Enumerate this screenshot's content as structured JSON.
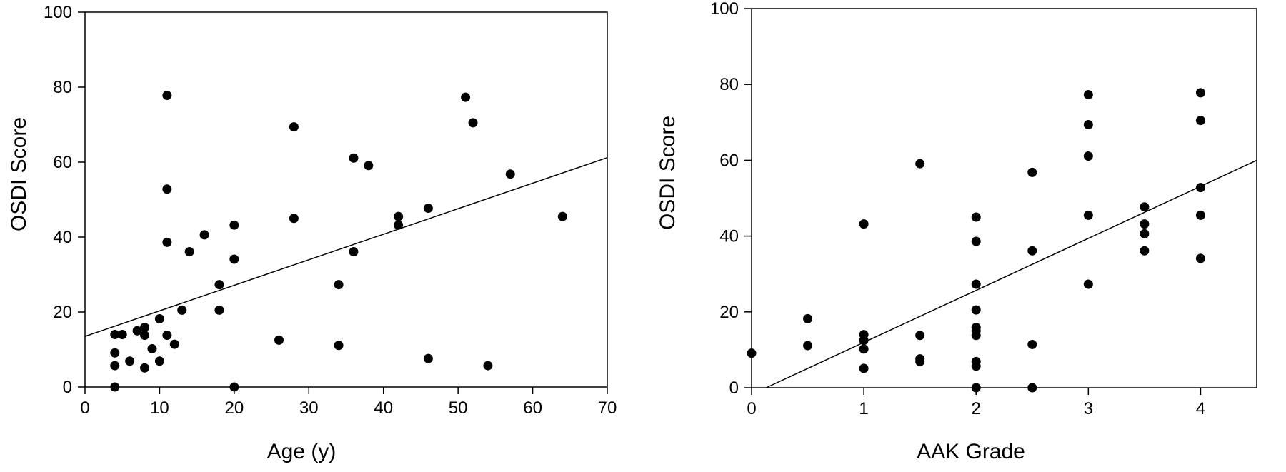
{
  "chart_data": [
    {
      "type": "scatter",
      "title": "",
      "xlabel": "Age (y)",
      "ylabel": "OSDI Score",
      "xlim": [
        0,
        70
      ],
      "ylim": [
        0,
        100
      ],
      "xticks": [
        0,
        10,
        20,
        30,
        40,
        50,
        60,
        70
      ],
      "yticks": [
        0,
        20,
        40,
        60,
        80,
        100
      ],
      "grid": false,
      "legend": "none",
      "marker_color": "#000000",
      "points": [
        {
          "x": 4,
          "y": 0
        },
        {
          "x": 4,
          "y": 5.7
        },
        {
          "x": 4,
          "y": 9.1
        },
        {
          "x": 4,
          "y": 14
        },
        {
          "x": 5,
          "y": 14
        },
        {
          "x": 6,
          "y": 6.9
        },
        {
          "x": 7,
          "y": 15
        },
        {
          "x": 8,
          "y": 5.1
        },
        {
          "x": 8,
          "y": 13.8
        },
        {
          "x": 8,
          "y": 15.9
        },
        {
          "x": 9,
          "y": 10.2
        },
        {
          "x": 10,
          "y": 6.9
        },
        {
          "x": 10,
          "y": 18.2
        },
        {
          "x": 11,
          "y": 13.8
        },
        {
          "x": 11,
          "y": 38.6
        },
        {
          "x": 11,
          "y": 52.8
        },
        {
          "x": 11,
          "y": 77.8
        },
        {
          "x": 12,
          "y": 11.4
        },
        {
          "x": 13,
          "y": 20.5
        },
        {
          "x": 14,
          "y": 36.1
        },
        {
          "x": 16,
          "y": 40.6
        },
        {
          "x": 18,
          "y": 20.5
        },
        {
          "x": 18,
          "y": 27.3
        },
        {
          "x": 20,
          "y": 0
        },
        {
          "x": 20,
          "y": 34.1
        },
        {
          "x": 20,
          "y": 43.2
        },
        {
          "x": 26,
          "y": 12.5
        },
        {
          "x": 28,
          "y": 45
        },
        {
          "x": 28,
          "y": 69.4
        },
        {
          "x": 34,
          "y": 11.1
        },
        {
          "x": 34,
          "y": 27.3
        },
        {
          "x": 36,
          "y": 36.1
        },
        {
          "x": 36,
          "y": 61.1
        },
        {
          "x": 38,
          "y": 59.1
        },
        {
          "x": 42,
          "y": 43.2
        },
        {
          "x": 42,
          "y": 45.5
        },
        {
          "x": 46,
          "y": 7.6
        },
        {
          "x": 46,
          "y": 47.7
        },
        {
          "x": 51,
          "y": 77.3
        },
        {
          "x": 52,
          "y": 70.5
        },
        {
          "x": 54,
          "y": 5.7
        },
        {
          "x": 57,
          "y": 56.8
        },
        {
          "x": 64,
          "y": 45.5
        }
      ],
      "trendline": {
        "x": [
          0,
          70
        ],
        "y": [
          13.5,
          61.2
        ]
      }
    },
    {
      "type": "scatter",
      "title": "",
      "xlabel": "AAK Grade",
      "ylabel": "OSDI Score",
      "xlim": [
        0,
        4.5
      ],
      "ylim": [
        0,
        100
      ],
      "xticks": [
        0,
        1,
        2,
        3,
        4
      ],
      "yticks": [
        0,
        20,
        40,
        60,
        80,
        100
      ],
      "grid": false,
      "legend": "none",
      "marker_color": "#000000",
      "points": [
        {
          "x": 0,
          "y": 9.1
        },
        {
          "x": 0.5,
          "y": 11.1
        },
        {
          "x": 0.5,
          "y": 18.2
        },
        {
          "x": 1,
          "y": 5.1
        },
        {
          "x": 1,
          "y": 10.2
        },
        {
          "x": 1,
          "y": 12.5
        },
        {
          "x": 1,
          "y": 14
        },
        {
          "x": 1,
          "y": 43.2
        },
        {
          "x": 1.5,
          "y": 6.9
        },
        {
          "x": 1.5,
          "y": 7.6
        },
        {
          "x": 1.5,
          "y": 13.8
        },
        {
          "x": 1.5,
          "y": 59.1
        },
        {
          "x": 2,
          "y": 0
        },
        {
          "x": 2,
          "y": 5.7
        },
        {
          "x": 2,
          "y": 6.9
        },
        {
          "x": 2,
          "y": 13.8
        },
        {
          "x": 2,
          "y": 15
        },
        {
          "x": 2,
          "y": 15.9
        },
        {
          "x": 2,
          "y": 20.5
        },
        {
          "x": 2,
          "y": 27.3
        },
        {
          "x": 2,
          "y": 38.6
        },
        {
          "x": 2,
          "y": 45
        },
        {
          "x": 2.5,
          "y": 0
        },
        {
          "x": 2.5,
          "y": 11.4
        },
        {
          "x": 2.5,
          "y": 36.1
        },
        {
          "x": 2.5,
          "y": 56.8
        },
        {
          "x": 3,
          "y": 27.3
        },
        {
          "x": 3,
          "y": 45.5
        },
        {
          "x": 3,
          "y": 61.1
        },
        {
          "x": 3,
          "y": 69.4
        },
        {
          "x": 3,
          "y": 77.3
        },
        {
          "x": 3.5,
          "y": 36.1
        },
        {
          "x": 3.5,
          "y": 40.6
        },
        {
          "x": 3.5,
          "y": 43.2
        },
        {
          "x": 3.5,
          "y": 47.7
        },
        {
          "x": 4,
          "y": 34.1
        },
        {
          "x": 4,
          "y": 45.5
        },
        {
          "x": 4,
          "y": 52.8
        },
        {
          "x": 4,
          "y": 70.5
        },
        {
          "x": 4,
          "y": 77.8
        }
      ],
      "trendline": {
        "x": [
          0.13,
          4.5
        ],
        "y": [
          0,
          60
        ]
      }
    }
  ]
}
